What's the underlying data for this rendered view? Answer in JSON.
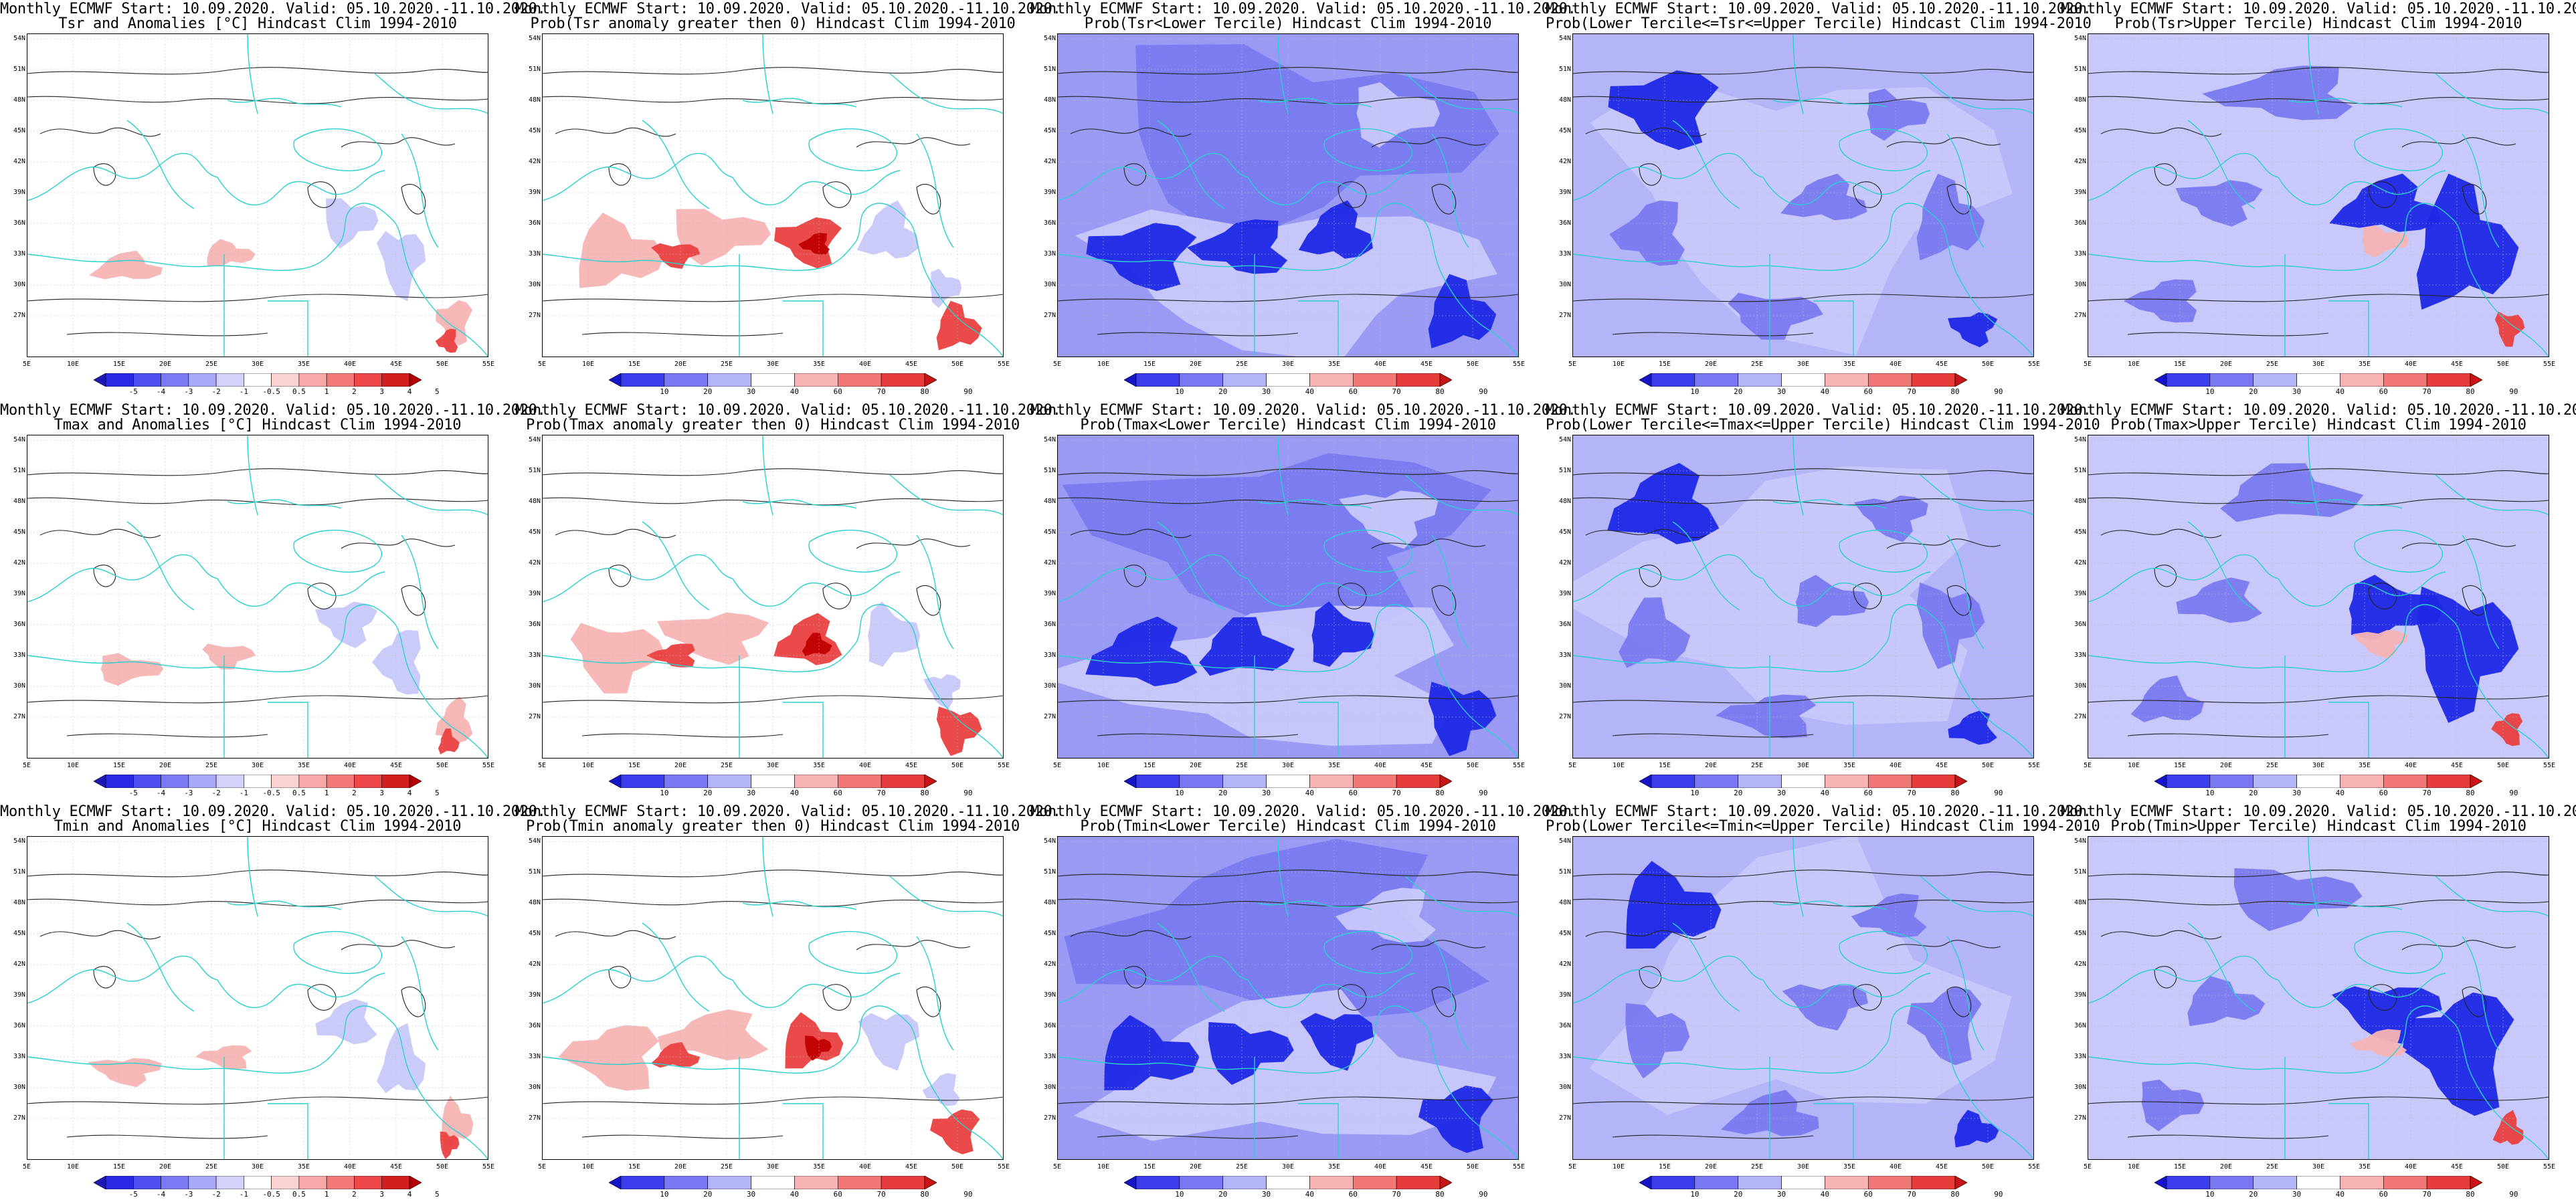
{
  "header_prefix": "Monthly ECMWF Start: 10.09.2020. Valid: 05.10.2020.-11.10.2020.",
  "lat_labels": [
    "54N",
    "51N",
    "48N",
    "45N",
    "42N",
    "39N",
    "36N",
    "33N",
    "30N",
    "27N"
  ],
  "lon_labels": [
    "5E",
    "10E",
    "15E",
    "20E",
    "25E",
    "30E",
    "35E",
    "40E",
    "45E",
    "50E",
    "55E"
  ],
  "colorbars": {
    "anomaly": {
      "ticks": [
        "-5",
        "-4",
        "-3",
        "-2",
        "-1",
        "-0.5",
        "0.5",
        "1",
        "2",
        "3",
        "4",
        "5"
      ],
      "colors": [
        "#1a1ab4",
        "#2a2ae6",
        "#4e4ef0",
        "#7a7af4",
        "#a8a8f8",
        "#d2d2fb",
        "#ffffff",
        "#fbd2d2",
        "#f8a8a8",
        "#f47a7a",
        "#ec4848",
        "#d21e1e",
        "#b40000"
      ]
    },
    "probability": {
      "ticks": [
        "10",
        "20",
        "30",
        "40",
        "60",
        "70",
        "80",
        "90"
      ],
      "colors": [
        "#1414c8",
        "#3c3cec",
        "#7878f2",
        "#b4b4f8",
        "#ffffff",
        "#f8b4b4",
        "#f27878",
        "#e63c3c",
        "#c81414"
      ]
    }
  },
  "colors": {
    "coast": "#2ad0d0",
    "contour": "#222222",
    "deep_blue": "#1e28e6",
    "mid_blue": "#7a7af0",
    "light_blue": "#c8c8fa",
    "light_red": "#f7b4b4",
    "red": "#ea4040",
    "dark_red": "#c00000"
  },
  "rows": [
    {
      "variable": "Tsr",
      "panels": [
        {
          "title": "Tsr and Anomalies [°C] Hindcast Clim 1994-2010",
          "kind": "anomaly",
          "colorbar": "anomaly"
        },
        {
          "title": "Prob(Tsr anomaly greater then 0) Hindcast Clim 1994-2010",
          "kind": "prob_pos",
          "colorbar": "probability"
        },
        {
          "title": "Prob(Tsr<Lower Tercile) Hindcast Clim 1994-2010",
          "kind": "lower",
          "colorbar": "probability"
        },
        {
          "title": "Prob(Lower Tercile<=Tsr<=Upper Tercile) Hindcast Clim 1994-2010",
          "kind": "middle",
          "colorbar": "probability"
        },
        {
          "title": "Prob(Tsr>Upper Tercile) Hindcast Clim 1994-2010",
          "kind": "upper",
          "colorbar": "probability"
        }
      ]
    },
    {
      "variable": "Tmax",
      "panels": [
        {
          "title": "Tmax and Anomalies [°C] Hindcast Clim 1994-2010",
          "kind": "anomaly",
          "colorbar": "anomaly"
        },
        {
          "title": "Prob(Tmax anomaly greater then 0) Hindcast Clim 1994-2010",
          "kind": "prob_pos",
          "colorbar": "probability"
        },
        {
          "title": "Prob(Tmax<Lower Tercile) Hindcast Clim 1994-2010",
          "kind": "lower",
          "colorbar": "probability"
        },
        {
          "title": "Prob(Lower Tercile<=Tmax<=Upper Tercile) Hindcast Clim 1994-2010",
          "kind": "middle",
          "colorbar": "probability"
        },
        {
          "title": "Prob(Tmax>Upper Tercile) Hindcast Clim 1994-2010",
          "kind": "upper",
          "colorbar": "probability"
        }
      ]
    },
    {
      "variable": "Tmin",
      "panels": [
        {
          "title": "Tmin and Anomalies [°C] Hindcast Clim 1994-2010",
          "kind": "anomaly",
          "colorbar": "anomaly"
        },
        {
          "title": "Prob(Tmin anomaly greater then 0) Hindcast Clim 1994-2010",
          "kind": "prob_pos",
          "colorbar": "probability"
        },
        {
          "title": "Prob(Tmin<Lower Tercile) Hindcast Clim 1994-2010",
          "kind": "lower",
          "colorbar": "probability"
        },
        {
          "title": "Prob(Lower Tercile<=Tmin<=Upper Tercile) Hindcast Clim 1994-2010",
          "kind": "middle",
          "colorbar": "probability"
        },
        {
          "title": "Prob(Tmin>Upper Tercile) Hindcast Clim 1994-2010",
          "kind": "upper",
          "colorbar": "probability"
        }
      ]
    }
  ]
}
